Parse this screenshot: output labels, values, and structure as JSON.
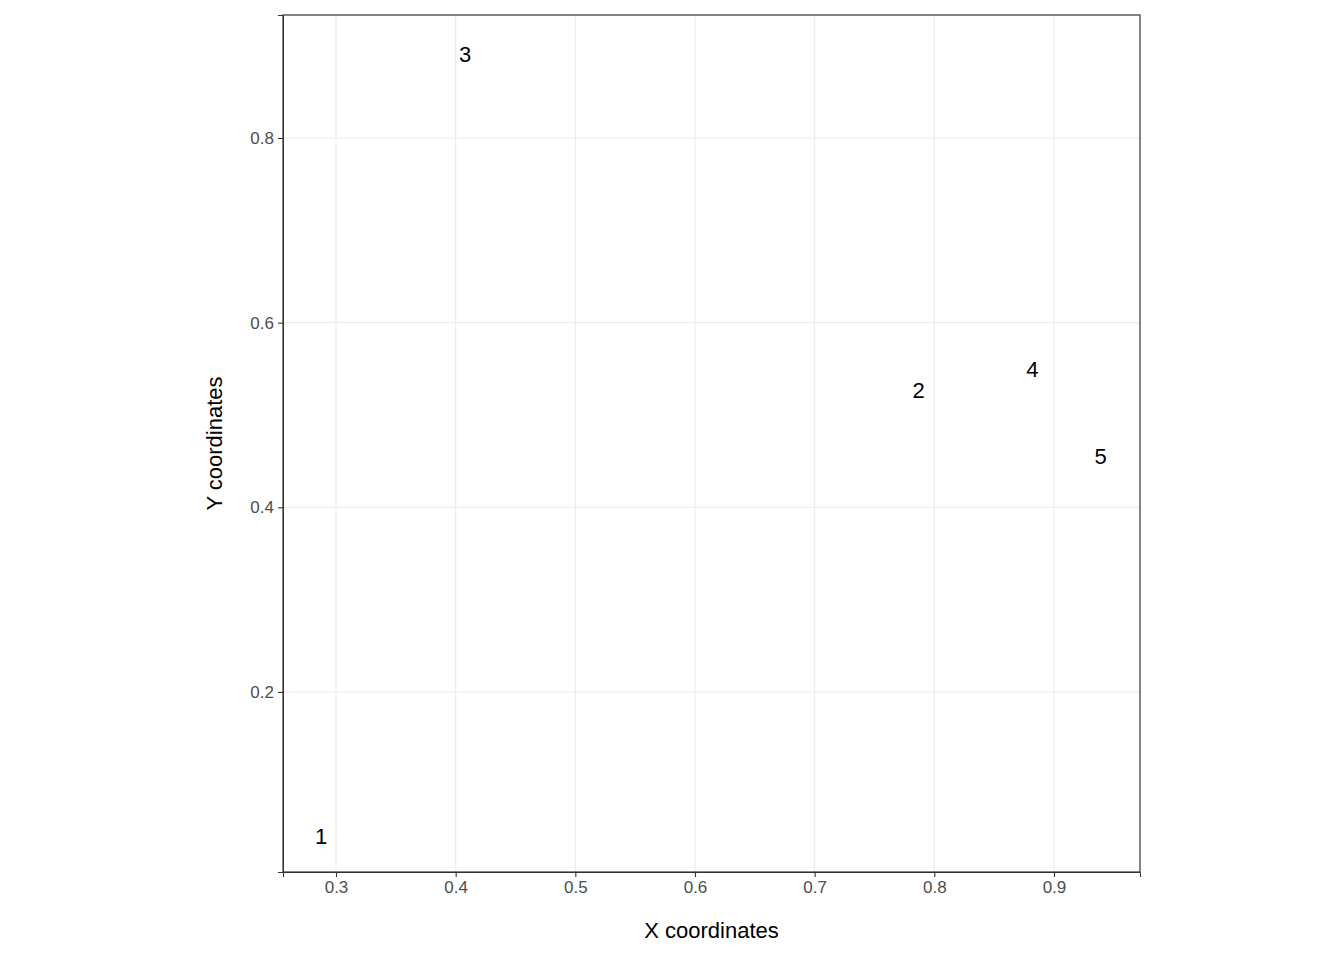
{
  "chart_data": {
    "type": "scatter",
    "marker": "text",
    "x_label": "X coordinates",
    "y_label": "Y coordinates",
    "labels": [
      "1",
      "2",
      "3",
      "4",
      "5"
    ],
    "x": [
      0.2875,
      0.787,
      0.408,
      0.882,
      0.939
    ],
    "y": [
      0.043,
      0.526,
      0.89,
      0.549,
      0.455
    ],
    "color": "#000000",
    "xlim": [
      0.2557,
      0.9719
    ],
    "ylim": [
      0.005,
      0.9332
    ],
    "xticks": [
      0.3,
      0.4,
      0.5,
      0.6,
      0.7,
      0.8,
      0.9
    ],
    "yticks": [
      0.2,
      0.4,
      0.6,
      0.8
    ],
    "grid": true
  }
}
